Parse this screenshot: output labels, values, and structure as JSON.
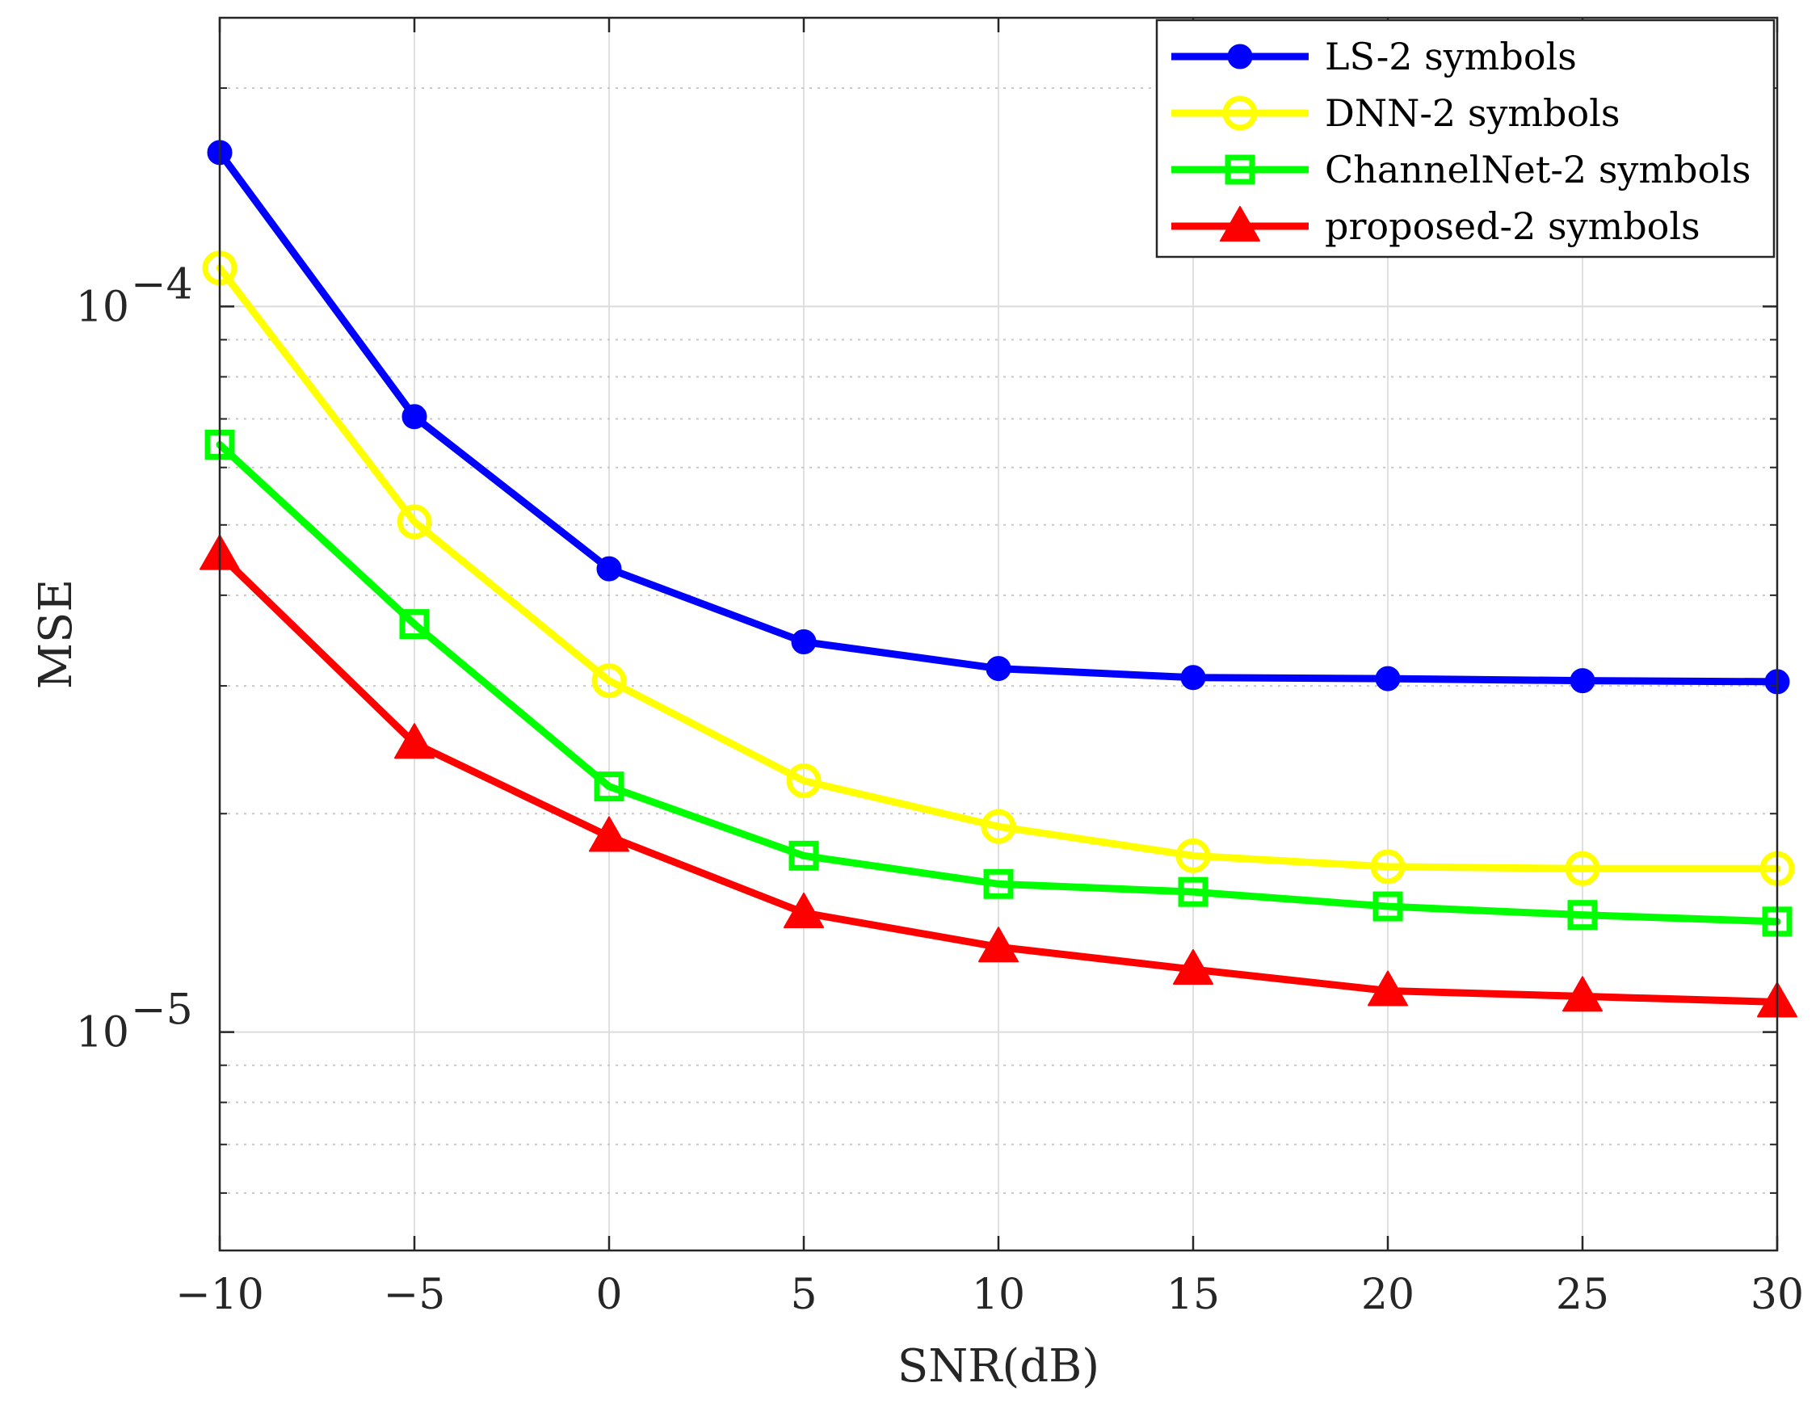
{
  "chart_data": {
    "type": "line",
    "title": "",
    "xlabel": "SNR(dB)",
    "ylabel": "MSE",
    "x": [
      -10,
      -5,
      0,
      5,
      10,
      15,
      20,
      25,
      30
    ],
    "xlim": [
      -10,
      30
    ],
    "ylim": [
      5e-06,
      0.00025
    ],
    "yscale": "log",
    "grid": true,
    "legend_position": "top-right",
    "x_tick_labels": [
      "−10",
      "−5",
      "0",
      "5",
      "10",
      "15",
      "20",
      "25",
      "30"
    ],
    "y_tick_labels": [
      {
        "value": 0.0001,
        "base": "10",
        "exp": "−4"
      },
      {
        "value": 1e-05,
        "base": "10",
        "exp": "−5"
      }
    ],
    "series": [
      {
        "name": "LS-2 symbols",
        "color": "#0000ff",
        "marker": "circle-filled",
        "values": [
          0.000163,
          7.05e-05,
          4.35e-05,
          3.45e-05,
          3.17e-05,
          3.08e-05,
          3.07e-05,
          3.05e-05,
          3.04e-05
        ]
      },
      {
        "name": "DNN-2 symbols",
        "color": "#ffff00",
        "marker": "circle-open",
        "values": [
          0.000113,
          5.05e-05,
          3.05e-05,
          2.22e-05,
          1.92e-05,
          1.75e-05,
          1.69e-05,
          1.68e-05,
          1.68e-05
        ]
      },
      {
        "name": "ChannelNet-2 symbols",
        "color": "#00ff00",
        "marker": "square-open",
        "values": [
          6.45e-05,
          3.65e-05,
          2.18e-05,
          1.75e-05,
          1.6e-05,
          1.56e-05,
          1.49e-05,
          1.45e-05,
          1.42e-05
        ]
      },
      {
        "name": "proposed-2 symbols",
        "color": "#ff0000",
        "marker": "triangle-filled",
        "values": [
          4.55e-05,
          2.5e-05,
          1.86e-05,
          1.46e-05,
          1.31e-05,
          1.22e-05,
          1.14e-05,
          1.12e-05,
          1.1e-05
        ]
      }
    ]
  }
}
